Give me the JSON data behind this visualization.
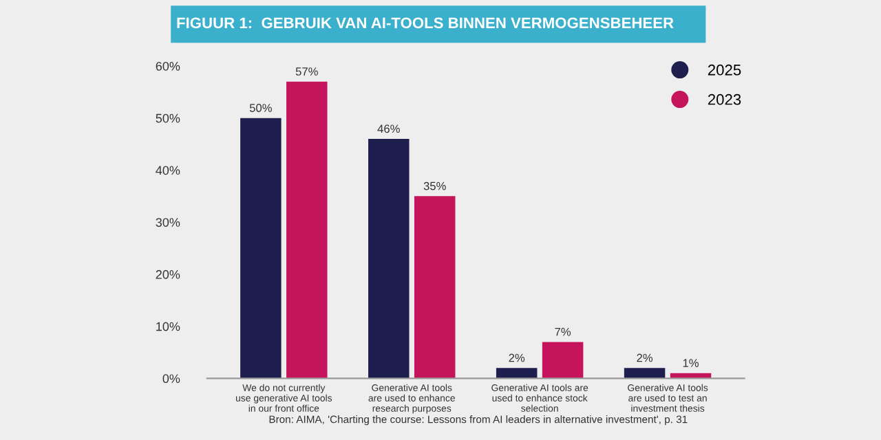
{
  "chart_data": {
    "type": "bar",
    "title": "FIGUUR 1:  GEBRUIK VAN AI-TOOLS BINNEN VERMOGENSBEHEER",
    "categories": [
      "We do not currently\nuse generative AI tools\nin our front office",
      "Generative AI tools\nare used to enhance\nresearch purposes",
      "Generative AI tools are\nused to enhance stock\nselection",
      "Generative AI tools\nare used to test an\ninvestment thesis"
    ],
    "series": [
      {
        "name": "2025",
        "color": "#1e1f4f",
        "values": [
          50,
          46,
          2,
          2
        ],
        "value_labels": [
          "50%",
          "46%",
          "2%",
          "2%"
        ]
      },
      {
        "name": "2023",
        "color": "#c5145c",
        "values": [
          57,
          35,
          7,
          1
        ],
        "value_labels": [
          "57%",
          "35%",
          "7%",
          "1%"
        ]
      }
    ],
    "ylim": [
      0,
      60
    ],
    "yticks": [
      {
        "value": 0,
        "label": "0%"
      },
      {
        "value": 10,
        "label": "10%"
      },
      {
        "value": 20,
        "label": "20%"
      },
      {
        "value": 30,
        "label": "30%"
      },
      {
        "value": 40,
        "label": "40%"
      },
      {
        "value": 50,
        "label": "50%"
      },
      {
        "value": 60,
        "label": "60%"
      }
    ],
    "grid": false,
    "legend": "top right",
    "annotations": [
      "Bron: AIMA, 'Charting the course: Lessons from AI leaders in alternative investment', p. 31"
    ]
  }
}
